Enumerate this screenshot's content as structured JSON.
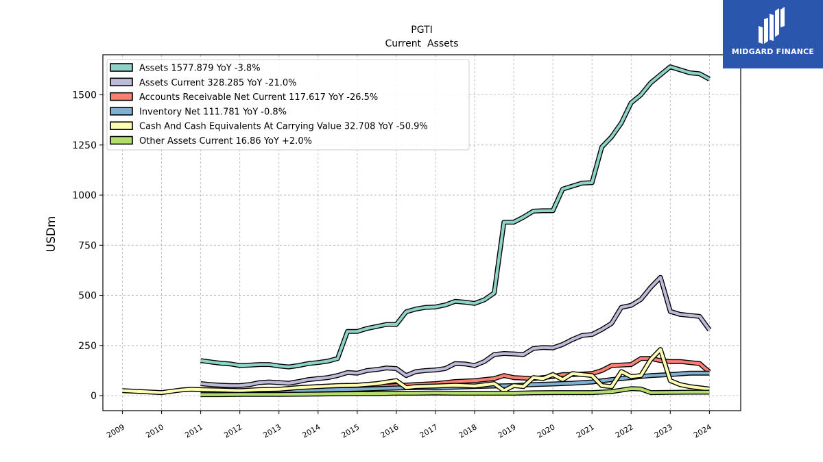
{
  "brand": {
    "name": "MIDGARD FINANCE",
    "logo_icon": "midgard-logo-icon",
    "bg_color": "#2a56ad"
  },
  "chart_data": {
    "type": "line",
    "title": "PGTI",
    "subtitle": "Current  Assets",
    "xlabel": "",
    "ylabel": "USDm",
    "xlim": [
      2008.5,
      2024.8
    ],
    "ylim": [
      -75,
      1700
    ],
    "yticks": [
      0,
      250,
      500,
      750,
      1000,
      1250,
      1500
    ],
    "xtick_labels": [
      "2009",
      "2010",
      "2011",
      "2012",
      "2013",
      "2014",
      "2015",
      "2016",
      "2017",
      "2018",
      "2019",
      "2020",
      "2021",
      "2022",
      "2023",
      "2024"
    ],
    "grid": true,
    "legend_position": "top-left",
    "series": [
      {
        "name": "Assets",
        "label": "Assets  1577.879 YoY -3.8%",
        "color": "#8dd3c7",
        "x": [
          2011.0,
          2011.25,
          2011.5,
          2011.75,
          2012.0,
          2012.25,
          2012.5,
          2012.75,
          2013.0,
          2013.25,
          2013.5,
          2013.75,
          2014.0,
          2014.25,
          2014.5,
          2014.75,
          2015.0,
          2015.25,
          2015.5,
          2015.75,
          2016.0,
          2016.25,
          2016.5,
          2016.75,
          2017.0,
          2017.25,
          2017.5,
          2017.75,
          2018.0,
          2018.25,
          2018.5,
          2018.75,
          2019.0,
          2019.25,
          2019.5,
          2019.75,
          2020.0,
          2020.25,
          2020.5,
          2020.75,
          2021.0,
          2021.25,
          2021.5,
          2021.75,
          2022.0,
          2022.25,
          2022.5,
          2022.75,
          2023.0,
          2023.25,
          2023.5,
          2023.75,
          2024.0
        ],
        "values": [
          175,
          168,
          162,
          158,
          150,
          152,
          155,
          155,
          148,
          143,
          150,
          160,
          165,
          172,
          185,
          320,
          320,
          335,
          345,
          355,
          355,
          418,
          432,
          440,
          442,
          452,
          470,
          466,
          460,
          478,
          512,
          865,
          865,
          890,
          920,
          922,
          922,
          1030,
          1045,
          1060,
          1062,
          1240,
          1290,
          1360,
          1460,
          1500,
          1560,
          1600,
          1640,
          1625,
          1610,
          1605,
          1578
        ]
      },
      {
        "name": "Assets Current",
        "label": "Assets Current  328.285 YoY -21.0%",
        "color": "#bebada",
        "x": [
          2011.0,
          2011.25,
          2011.5,
          2011.75,
          2012.0,
          2012.25,
          2012.5,
          2012.75,
          2013.0,
          2013.25,
          2013.5,
          2013.75,
          2014.0,
          2014.25,
          2014.5,
          2014.75,
          2015.0,
          2015.25,
          2015.5,
          2015.75,
          2016.0,
          2016.25,
          2016.5,
          2016.75,
          2017.0,
          2017.25,
          2017.5,
          2017.75,
          2018.0,
          2018.25,
          2018.5,
          2018.75,
          2019.0,
          2019.25,
          2019.5,
          2019.75,
          2020.0,
          2020.25,
          2020.5,
          2020.75,
          2021.0,
          2021.25,
          2021.5,
          2021.75,
          2022.0,
          2022.25,
          2022.5,
          2022.75,
          2023.0,
          2023.25,
          2023.5,
          2023.75,
          2024.0
        ],
        "values": [
          60,
          55,
          52,
          50,
          50,
          55,
          65,
          68,
          65,
          62,
          70,
          80,
          85,
          90,
          100,
          115,
          112,
          125,
          130,
          138,
          135,
          100,
          120,
          125,
          128,
          135,
          160,
          158,
          150,
          170,
          205,
          210,
          208,
          205,
          235,
          240,
          238,
          255,
          280,
          300,
          305,
          330,
          360,
          440,
          450,
          480,
          540,
          590,
          420,
          405,
          400,
          395,
          328
        ]
      },
      {
        "name": "Accounts Receivable Net Current",
        "label": "Accounts Receivable Net Current  117.617 YoY -26.5%",
        "color": "#fb8072",
        "x": [
          2011.0,
          2011.5,
          2012.0,
          2012.5,
          2013.0,
          2013.5,
          2014.0,
          2014.5,
          2015.0,
          2015.5,
          2016.0,
          2016.5,
          2017.0,
          2017.5,
          2018.0,
          2018.5,
          2018.75,
          2019.0,
          2019.5,
          2020.0,
          2020.25,
          2020.5,
          2021.0,
          2021.25,
          2021.5,
          2022.0,
          2022.25,
          2022.5,
          2022.75,
          2023.0,
          2023.25,
          2023.5,
          2023.75,
          2024.0
        ],
        "values": [
          25,
          22,
          20,
          25,
          28,
          30,
          35,
          38,
          40,
          45,
          50,
          55,
          60,
          70,
          75,
          85,
          100,
          90,
          85,
          95,
          105,
          105,
          110,
          125,
          150,
          155,
          185,
          185,
          175,
          170,
          170,
          165,
          160,
          118
        ]
      },
      {
        "name": "Inventory Net",
        "label": "Inventory Net  111.781 YoY -0.8%",
        "color": "#80b1d3",
        "x": [
          2011.0,
          2011.5,
          2012.0,
          2012.5,
          2013.0,
          2013.5,
          2014.0,
          2014.5,
          2015.0,
          2015.5,
          2016.0,
          2016.5,
          2017.0,
          2017.5,
          2018.0,
          2018.5,
          2019.0,
          2019.5,
          2020.0,
          2020.5,
          2021.0,
          2021.5,
          2022.0,
          2022.5,
          2023.0,
          2023.5,
          2023.75,
          2024.0
        ],
        "values": [
          20,
          20,
          22,
          25,
          25,
          25,
          28,
          30,
          32,
          35,
          38,
          40,
          40,
          42,
          45,
          48,
          50,
          55,
          58,
          62,
          68,
          80,
          90,
          100,
          105,
          112,
          112,
          112
        ]
      },
      {
        "name": "Cash And Cash Equivalents At Carrying Value",
        "label": "Cash And Cash Equivalents At Carrying Value  32.708 YoY -50.9%",
        "color": "#ffffb3",
        "x": [
          2009.0,
          2010.0,
          2010.5,
          2010.75,
          2011.0,
          2011.5,
          2012.0,
          2012.5,
          2013.0,
          2013.5,
          2014.0,
          2014.5,
          2015.0,
          2015.5,
          2016.0,
          2016.25,
          2016.5,
          2017.0,
          2017.5,
          2018.0,
          2018.5,
          2018.75,
          2019.0,
          2019.25,
          2019.5,
          2019.75,
          2020.0,
          2020.25,
          2020.5,
          2021.0,
          2021.25,
          2021.5,
          2021.75,
          2022.0,
          2022.25,
          2022.5,
          2022.75,
          2023.0,
          2023.25,
          2023.5,
          2024.0
        ],
        "values": [
          25,
          15,
          28,
          32,
          30,
          28,
          25,
          30,
          32,
          40,
          45,
          50,
          52,
          60,
          75,
          40,
          45,
          48,
          52,
          48,
          60,
          25,
          50,
          45,
          90,
          85,
          105,
          80,
          110,
          100,
          50,
          45,
          120,
          95,
          100,
          180,
          230,
          75,
          55,
          45,
          33
        ]
      },
      {
        "name": "Other Assets Current",
        "label": "Other Assets Current  16.86 YoY +2.0%",
        "color": "#b3de69",
        "x": [
          2011.0,
          2011.5,
          2012.0,
          2012.5,
          2013.0,
          2013.5,
          2014.0,
          2014.5,
          2015.0,
          2015.5,
          2016.0,
          2016.5,
          2017.0,
          2017.5,
          2018.0,
          2018.5,
          2019.0,
          2019.5,
          2020.0,
          2020.5,
          2021.0,
          2021.5,
          2022.0,
          2022.25,
          2022.5,
          2023.0,
          2023.5,
          2024.0
        ],
        "values": [
          5,
          5,
          6,
          6,
          6,
          7,
          8,
          9,
          10,
          10,
          12,
          12,
          13,
          12,
          12,
          12,
          12,
          14,
          15,
          15,
          15,
          20,
          35,
          33,
          15,
          16,
          17,
          17
        ]
      }
    ]
  }
}
